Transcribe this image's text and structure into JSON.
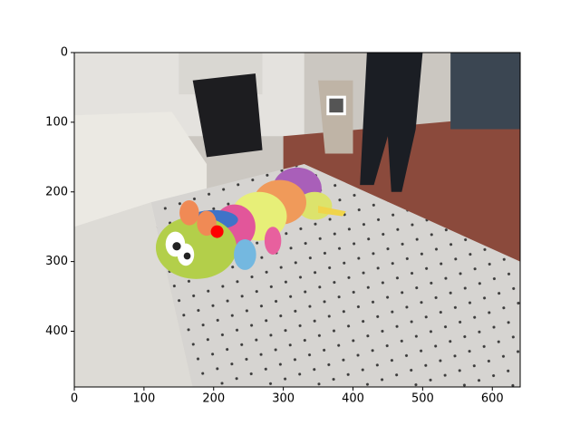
{
  "chart_data": {
    "type": "scatter",
    "x": [
      205
    ],
    "values": [
      257
    ],
    "color": "#ff0000",
    "xlim": [
      0,
      640
    ],
    "ylim": [
      480,
      0
    ],
    "xticks": [
      0,
      100,
      200,
      300,
      400,
      500,
      600
    ],
    "yticks": [
      0,
      100,
      200,
      300,
      400
    ]
  }
}
